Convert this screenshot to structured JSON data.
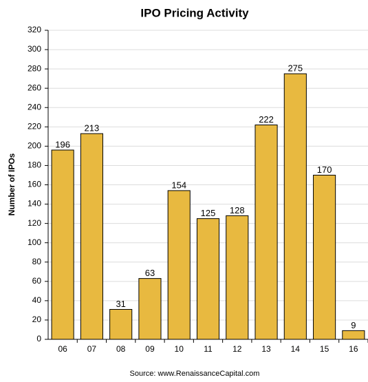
{
  "chart_data": {
    "type": "bar",
    "title": "IPO Pricing Activity",
    "y_label": "Number of IPOs",
    "source": "Source: www.RenaissanceCapital.com",
    "categories": [
      "06",
      "07",
      "08",
      "09",
      "10",
      "11",
      "12",
      "13",
      "14",
      "15",
      "16"
    ],
    "values": [
      196,
      213,
      31,
      63,
      154,
      125,
      128,
      222,
      275,
      170,
      9
    ],
    "color": "#e8b940",
    "ylim": [
      0,
      320
    ],
    "yticks": [
      0,
      20,
      40,
      60,
      80,
      100,
      120,
      140,
      160,
      180,
      200,
      220,
      240,
      260,
      280,
      300,
      320
    ],
    "grid": true
  }
}
